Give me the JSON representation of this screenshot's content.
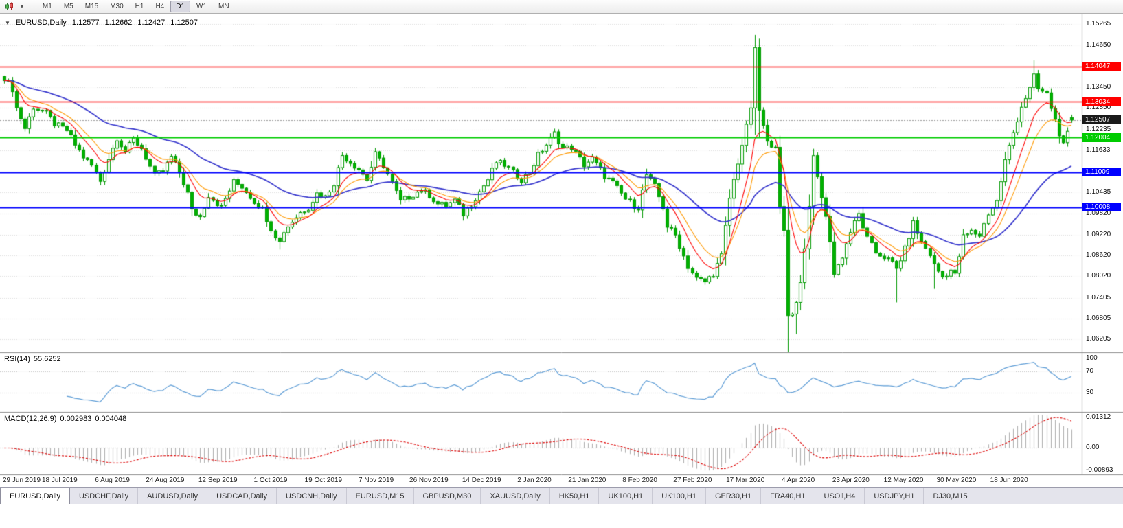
{
  "colors": {
    "candle_stroke": "#009900",
    "bull_fill": "#FFFFFF",
    "bear_fill": "#00B300",
    "ma_fast": "#FF0000",
    "ma_mid": "#FF9900",
    "ma_slow": "#3333CC",
    "level_red": "#FF0000",
    "level_green": "#00CC00",
    "level_blue": "#0000FF",
    "current_badge": "#1a1a1a",
    "grid": "#DCDCDC",
    "rsi_line": "#5B9BD5",
    "macd_hist": "#ADADAD",
    "macd_signal": "#DD0000",
    "separator": "#8c8c8c"
  },
  "toolbar": {
    "timeframes": [
      "M1",
      "M5",
      "M15",
      "M30",
      "H1",
      "H4",
      "D1",
      "W1",
      "MN"
    ],
    "active_timeframe": "D1"
  },
  "chart": {
    "collapse_icon": "▼",
    "symbol": "EURUSD,Daily",
    "quote": {
      "open": "1.12577",
      "high": "1.12662",
      "low": "1.12427",
      "close": "1.12507"
    }
  },
  "dates": [
    "29 Jun 2019",
    "18 Jul 2019",
    "6 Aug 2019",
    "24 Aug 2019",
    "12 Sep 2019",
    "1 Oct 2019",
    "19 Oct 2019",
    "7 Nov 2019",
    "26 Nov 2019",
    "14 Dec 2019",
    "2 Jan 2020",
    "21 Jan 2020",
    "8 Feb 2020",
    "27 Feb 2020",
    "17 Mar 2020",
    "4 Apr 2020",
    "23 Apr 2020",
    "12 May 2020",
    "30 May 2020",
    "18 Jun 2020"
  ],
  "tabs": {
    "active_index": 0,
    "items": [
      "EURUSD,Daily",
      "USDCHF,Daily",
      "AUDUSD,Daily",
      "USDCAD,Daily",
      "USDCNH,Daily",
      "EURUSD,M15",
      "GBPUSD,M30",
      "XAUUSD,Daily",
      "HK50,H1",
      "UK100,H1",
      "UK100,H1",
      "GER30,H1",
      "FRA40,H1",
      "USOil,H4",
      "USDJPY,H1",
      "DJ30,M15"
    ],
    "active_item": "EURUSD,Daily"
  },
  "chart_data": {
    "type": "candlestick",
    "title": "EURUSD,Daily",
    "symbol": "EURUSD",
    "timeframe": "Daily",
    "candle_count": 257,
    "price_range": {
      "top": 1.1552,
      "bottom": 1.0584
    },
    "y_ticks": [
      "1.15265",
      "1.14650",
      "1.13450",
      "1.12850",
      "1.12235",
      "1.11633",
      "1.10435",
      "1.09820",
      "1.09220",
      "1.08620",
      "1.08020",
      "1.07405",
      "1.06805",
      "1.06205"
    ],
    "levels": [
      {
        "label": "1.14047",
        "price": 1.14047,
        "color_key": "level_red",
        "width": 1.4
      },
      {
        "label": "1.13034",
        "price": 1.13034,
        "color_key": "level_red",
        "width": 1.4
      },
      {
        "label": "1.12004",
        "price": 1.12004,
        "color_key": "level_green",
        "width": 2
      },
      {
        "label": "1.11009",
        "price": 1.11009,
        "color_key": "level_blue",
        "width": 2
      },
      {
        "label": "1.10008",
        "price": 1.10008,
        "color_key": "level_blue",
        "width": 2
      }
    ],
    "current_price": {
      "label": "1.12507",
      "price": 1.12507
    },
    "moving_averages": [
      {
        "period": 8,
        "color_key": "ma_fast",
        "width": 1.1
      },
      {
        "period": 13,
        "color_key": "ma_mid",
        "width": 1.1
      },
      {
        "period": 40,
        "color_key": "ma_slow",
        "width": 1.7
      }
    ],
    "indicators": {
      "rsi": {
        "name": "RSI(14)",
        "value_text": "55.6252",
        "value": 55.6252,
        "period": 14,
        "scale": [
          {
            "label": "100",
            "v": 100
          },
          {
            "label": "70",
            "v": 70
          },
          {
            "label": "30",
            "v": 30
          }
        ],
        "dotted_levels": [
          70,
          30
        ]
      },
      "macd": {
        "name": "MACD(12,26,9)",
        "main_text": "0.002983",
        "signal_text": "0.004048",
        "main_value": 0.002983,
        "signal_value": 0.004048,
        "scale": [
          {
            "label": "0.01312",
            "v": 0.01312
          },
          {
            "label": "0.00",
            "v": 0
          },
          {
            "label": "-0.00893",
            "v": -0.00893
          }
        ],
        "range": {
          "top": 0.014,
          "bottom": -0.0105
        }
      }
    },
    "close_waypoints": [
      [
        0,
        1.1373
      ],
      [
        2,
        1.134
      ],
      [
        3,
        1.1285
      ],
      [
        5,
        1.1227
      ],
      [
        7,
        1.1288
      ],
      [
        10,
        1.127
      ],
      [
        12,
        1.124
      ],
      [
        15,
        1.1221
      ],
      [
        17,
        1.118
      ],
      [
        19,
        1.1145
      ],
      [
        21,
        1.112
      ],
      [
        23,
        1.1076
      ],
      [
        25,
        1.114
      ],
      [
        27,
        1.12
      ],
      [
        29,
        1.116
      ],
      [
        31,
        1.1195
      ],
      [
        33,
        1.117
      ],
      [
        36,
        1.109
      ],
      [
        38,
        1.1105
      ],
      [
        40,
        1.1145
      ],
      [
        42,
        1.11
      ],
      [
        44,
        1.104
      ],
      [
        45,
        1.099
      ],
      [
        47,
        1.0973
      ],
      [
        49,
        1.1035
      ],
      [
        52,
        1.1
      ],
      [
        55,
        1.1073
      ],
      [
        57,
        1.106
      ],
      [
        60,
        1.1017
      ],
      [
        62,
        1.0995
      ],
      [
        64,
        1.094
      ],
      [
        66,
        1.09
      ],
      [
        67,
        1.0932
      ],
      [
        69,
        1.096
      ],
      [
        71,
        1.0985
      ],
      [
        73,
        1.1
      ],
      [
        75,
        1.104
      ],
      [
        77,
        1.103
      ],
      [
        79,
        1.107
      ],
      [
        81,
        1.115
      ],
      [
        83,
        1.113
      ],
      [
        85,
        1.111
      ],
      [
        87,
        1.108
      ],
      [
        89,
        1.1152
      ],
      [
        91,
        1.112
      ],
      [
        93,
        1.107
      ],
      [
        95,
        1.1017
      ],
      [
        97,
        1.103
      ],
      [
        100,
        1.1051
      ],
      [
        102,
        1.1035
      ],
      [
        104,
        1.101
      ],
      [
        106,
        1.1005
      ],
      [
        108,
        1.102
      ],
      [
        110,
        1.0981
      ],
      [
        112,
        1.101
      ],
      [
        114,
        1.1045
      ],
      [
        116,
        1.108
      ],
      [
        118,
        1.113
      ],
      [
        120,
        1.1122
      ],
      [
        122,
        1.11
      ],
      [
        124,
        1.108
      ],
      [
        126,
        1.11
      ],
      [
        128,
        1.115
      ],
      [
        130,
        1.118
      ],
      [
        132,
        1.1212
      ],
      [
        134,
        1.117
      ],
      [
        136,
        1.1172
      ],
      [
        139,
        1.1122
      ],
      [
        141,
        1.114
      ],
      [
        144,
        1.109
      ],
      [
        146,
        1.107
      ],
      [
        149,
        1.1024
      ],
      [
        151,
        1.1005
      ],
      [
        152,
        1.1
      ],
      [
        154,
        1.1093
      ],
      [
        156,
        1.106
      ],
      [
        158,
        1.1
      ],
      [
        159,
        1.0946
      ],
      [
        161,
        1.092
      ],
      [
        164,
        1.083
      ],
      [
        166,
        1.0795
      ],
      [
        168,
        1.0786
      ],
      [
        170,
        1.081
      ],
      [
        172,
        1.086
      ],
      [
        174,
        1.1026
      ],
      [
        176,
        1.113
      ],
      [
        178,
        1.123
      ],
      [
        179,
        1.1288
      ],
      [
        180,
        1.145
      ],
      [
        181,
        1.128
      ],
      [
        183,
        1.1184
      ],
      [
        185,
        1.118
      ],
      [
        186,
        1.0995
      ],
      [
        187,
        1.093
      ],
      [
        188,
        1.069
      ],
      [
        189,
        1.07
      ],
      [
        190,
        1.0725
      ],
      [
        191,
        1.079
      ],
      [
        192,
        1.088
      ],
      [
        193,
        1.101
      ],
      [
        194,
        1.114
      ],
      [
        196,
        1.1031
      ],
      [
        198,
        1.0907
      ],
      [
        199,
        1.0808
      ],
      [
        201,
        1.086
      ],
      [
        203,
        1.093
      ],
      [
        205,
        1.098
      ],
      [
        207,
        1.091
      ],
      [
        209,
        1.087
      ],
      [
        211,
        1.0858
      ],
      [
        213,
        1.084
      ],
      [
        214,
        1.0823
      ],
      [
        216,
        1.088
      ],
      [
        218,
        1.0955
      ],
      [
        220,
        1.09
      ],
      [
        222,
        1.0865
      ],
      [
        223,
        1.0834
      ],
      [
        225,
        1.08
      ],
      [
        227,
        1.082
      ],
      [
        228,
        1.0805
      ],
      [
        230,
        1.0915
      ],
      [
        232,
        1.093
      ],
      [
        234,
        1.092
      ],
      [
        236,
        1.0983
      ],
      [
        238,
        1.1017
      ],
      [
        240,
        1.1134
      ],
      [
        242,
        1.1215
      ],
      [
        244,
        1.129
      ],
      [
        246,
        1.134
      ],
      [
        247,
        1.1375
      ],
      [
        248,
        1.134
      ],
      [
        250,
        1.1324
      ],
      [
        252,
        1.125
      ],
      [
        254,
        1.1177
      ],
      [
        255,
        1.121
      ],
      [
        256,
        1.12507
      ]
    ],
    "extremes": [
      [
        66,
        "low",
        1.0879
      ],
      [
        168,
        "low",
        1.0778
      ],
      [
        180,
        "high",
        1.1495
      ],
      [
        190,
        "low",
        1.0636
      ],
      [
        214,
        "low",
        1.0727
      ],
      [
        223,
        "low",
        1.0766
      ],
      [
        247,
        "high",
        1.1422
      ]
    ]
  }
}
